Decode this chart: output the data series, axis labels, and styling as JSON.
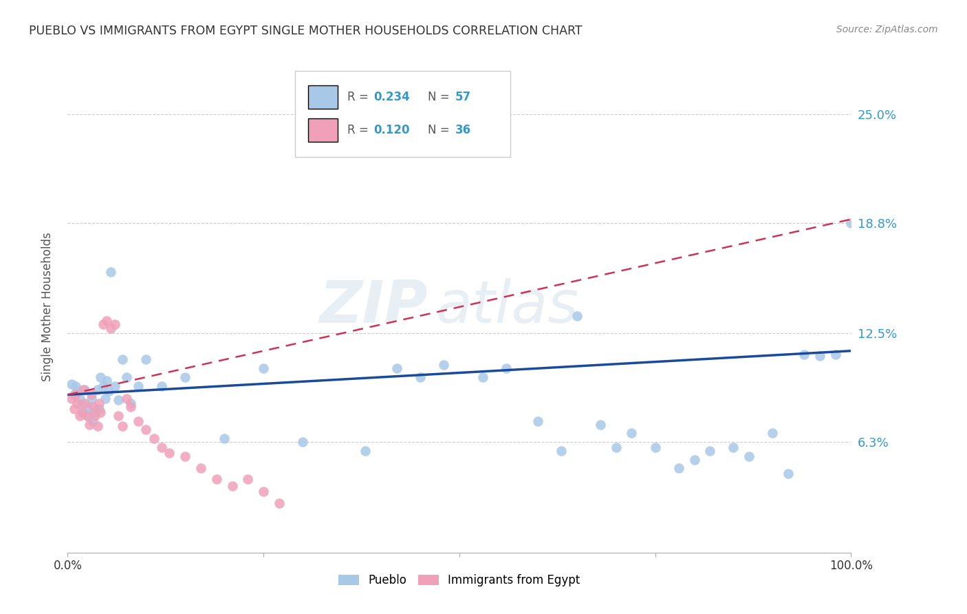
{
  "title": "PUEBLO VS IMMIGRANTS FROM EGYPT SINGLE MOTHER HOUSEHOLDS CORRELATION CHART",
  "source": "Source: ZipAtlas.com",
  "ylabel": "Single Mother Households",
  "ytick_labels": [
    "6.3%",
    "12.5%",
    "18.8%",
    "25.0%"
  ],
  "ytick_values": [
    0.063,
    0.125,
    0.188,
    0.25
  ],
  "xlim": [
    0.0,
    1.0
  ],
  "ylim": [
    0.0,
    0.28
  ],
  "color_pueblo": "#a8c8e8",
  "color_egypt": "#f0a0b8",
  "color_trendline_pueblo": "#1a4a9a",
  "color_trendline_egypt": "#cc3355",
  "watermark_zip": "ZIP",
  "watermark_atlas": "atlas",
  "background_color": "#ffffff",
  "pueblo_x": [
    0.005,
    0.008,
    0.01,
    0.012,
    0.015,
    0.018,
    0.02,
    0.022,
    0.025,
    0.028,
    0.03,
    0.032,
    0.035,
    0.038,
    0.04,
    0.042,
    0.045,
    0.048,
    0.05,
    0.052,
    0.055,
    0.06,
    0.065,
    0.07,
    0.075,
    0.08,
    0.09,
    0.1,
    0.12,
    0.15,
    0.2,
    0.25,
    0.3,
    0.38,
    0.42,
    0.45,
    0.48,
    0.53,
    0.56,
    0.6,
    0.63,
    0.65,
    0.68,
    0.7,
    0.72,
    0.75,
    0.78,
    0.8,
    0.82,
    0.85,
    0.87,
    0.9,
    0.92,
    0.94,
    0.96,
    0.98,
    1.0
  ],
  "pueblo_y": [
    0.096,
    0.09,
    0.095,
    0.092,
    0.088,
    0.085,
    0.08,
    0.093,
    0.078,
    0.083,
    0.088,
    0.075,
    0.08,
    0.093,
    0.082,
    0.1,
    0.095,
    0.088,
    0.098,
    0.092,
    0.16,
    0.095,
    0.087,
    0.11,
    0.1,
    0.085,
    0.095,
    0.11,
    0.095,
    0.1,
    0.065,
    0.105,
    0.063,
    0.058,
    0.105,
    0.1,
    0.107,
    0.1,
    0.105,
    0.075,
    0.058,
    0.135,
    0.073,
    0.06,
    0.068,
    0.06,
    0.048,
    0.053,
    0.058,
    0.06,
    0.055,
    0.068,
    0.045,
    0.113,
    0.112,
    0.113,
    0.188
  ],
  "pueblo_y_trendline_start": 0.09,
  "pueblo_y_trendline_end": 0.115,
  "egypt_x": [
    0.005,
    0.008,
    0.01,
    0.012,
    0.015,
    0.018,
    0.02,
    0.022,
    0.025,
    0.028,
    0.03,
    0.032,
    0.035,
    0.038,
    0.04,
    0.042,
    0.045,
    0.05,
    0.055,
    0.06,
    0.065,
    0.07,
    0.075,
    0.08,
    0.09,
    0.1,
    0.11,
    0.12,
    0.13,
    0.15,
    0.17,
    0.19,
    0.21,
    0.23,
    0.25,
    0.27
  ],
  "egypt_y": [
    0.088,
    0.082,
    0.09,
    0.085,
    0.078,
    0.08,
    0.093,
    0.085,
    0.078,
    0.073,
    0.09,
    0.083,
    0.078,
    0.072,
    0.085,
    0.08,
    0.13,
    0.132,
    0.128,
    0.13,
    0.078,
    0.072,
    0.088,
    0.083,
    0.075,
    0.07,
    0.065,
    0.06,
    0.057,
    0.055,
    0.048,
    0.042,
    0.038,
    0.042,
    0.035,
    0.028
  ],
  "egypt_y_trendline_start": 0.09,
  "egypt_y_trendline_end": 0.19,
  "bottom_legend_labels": [
    "Pueblo",
    "Immigrants from Egypt"
  ]
}
